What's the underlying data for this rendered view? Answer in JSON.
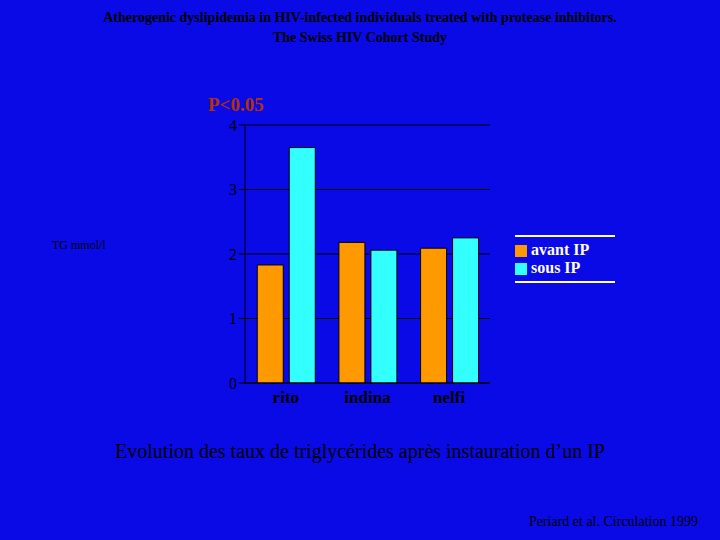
{
  "chart_data": {
    "type": "bar",
    "title": "Atherogenic dyslipidemia in HIV-infected individuals treated with protease inhibitors.",
    "subtitle": "The Swiss HIV Cohort Study",
    "y_label": "TG mmol/l",
    "annotations": [
      "P<0.05"
    ],
    "caption": "Evolution des taux de triglycérides après instauration d’un IP",
    "source": "Periard et al. Circulation 1999",
    "categories": [
      "rito",
      "indina",
      "nelfi"
    ],
    "series": [
      {
        "name": "avant IP",
        "color": "#ff9900",
        "values": [
          1.83,
          2.18,
          2.09
        ]
      },
      {
        "name": "sous IP",
        "color": "#33ffff",
        "values": [
          3.65,
          2.06,
          2.25
        ]
      }
    ],
    "ylim": [
      0,
      4
    ],
    "yticks": [
      0,
      1,
      2,
      3,
      4
    ],
    "grid": true,
    "legend": "right"
  }
}
